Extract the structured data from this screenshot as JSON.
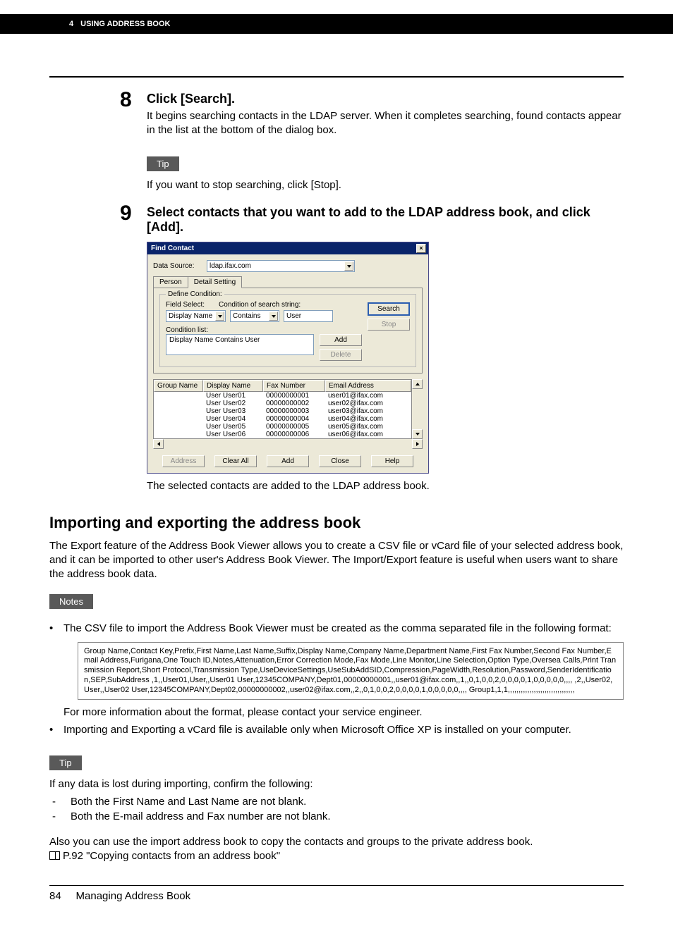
{
  "header": {
    "chapter_num": "4",
    "chapter_title": "USING ADDRESS BOOK"
  },
  "step8": {
    "num": "8",
    "title": "Click [Search].",
    "text": "It begins searching contacts in the LDAP server. When it completes searching, found contacts appear in the list at the bottom of the dialog box."
  },
  "tip1": {
    "label": "Tip",
    "text": "If you want to stop searching, click [Stop]."
  },
  "step9": {
    "num": "9",
    "title": "Select contacts that you want to add to the LDAP address book, and click [Add].",
    "after_img": "The selected contacts are added to the LDAP address book."
  },
  "dialog": {
    "title": "Find Contact",
    "data_source_label": "Data Source:",
    "data_source_value": "ldap.ifax.com",
    "tab_person": "Person",
    "tab_detail": "Detail Setting",
    "define_condition": "Define Condition:",
    "field_select_label": "Field Select:",
    "field_select_value": "Display Name",
    "condition_label": "Condition of search string:",
    "condition_value": "Contains",
    "search_string_value": "User",
    "condition_list_label": "Condition list:",
    "condition_list_value": "Display Name Contains User",
    "btn_add": "Add",
    "btn_delete": "Delete",
    "btn_search": "Search",
    "btn_stop": "Stop",
    "col_group": "Group Name",
    "col_display": "Display Name",
    "col_fax": "Fax Number",
    "col_email": "Email Address",
    "rows": [
      {
        "group": "",
        "display": "User User01",
        "fax": "00000000001",
        "email": "user01@ifax.com"
      },
      {
        "group": "",
        "display": "User User02",
        "fax": "00000000002",
        "email": "user02@ifax.com"
      },
      {
        "group": "",
        "display": "User User03",
        "fax": "00000000003",
        "email": "user03@ifax.com"
      },
      {
        "group": "",
        "display": "User User04",
        "fax": "00000000004",
        "email": "user04@ifax.com"
      },
      {
        "group": "",
        "display": "User User05",
        "fax": "00000000005",
        "email": "user05@ifax.com"
      },
      {
        "group": "",
        "display": "User User06",
        "fax": "00000000006",
        "email": "user06@ifax.com"
      }
    ],
    "btn_address": "Address",
    "btn_clear_all": "Clear All",
    "btn_add2": "Add",
    "btn_close": "Close",
    "btn_help": "Help"
  },
  "section2": {
    "title": "Importing and exporting the address book",
    "intro": "The Export feature of the Address Book Viewer allows you to create a CSV file or vCard file of your selected address book, and it can be imported to other user's Address Book Viewer. The Import/Export feature is useful when users want to share the address book data."
  },
  "notes": {
    "label": "Notes",
    "bullet1": "The CSV file to import the Address Book Viewer must be created as the comma separated file in the following format:",
    "csv": "Group Name,Contact Key,Prefix,First Name,Last Name,Suffix,Display Name,Company Name,Department Name,First Fax Number,Second Fax Number,Email Address,Furigana,One Touch ID,Notes,Attenuation,Error Correction Mode,Fax Mode,Line Monitor,Line Selection,Option Type,Oversea Calls,Print Transmission Report,Short Protocol,Transmission Type,UseDeviceSettings,UseSubAddSID,Compression,PageWidth,Resolution,Password,SenderIdentification,SEP,SubAddress ,1,,User01,User,,User01 User,12345COMPANY,Dept01,00000000001,,user01@ifax.com,,1,,0,1,0,0,2,0,0,0,0,1,0,0,0,0,0,,,, ,2,,User02,User,,User02 User,12345COMPANY,Dept02,00000000002,,user02@ifax.com,,2,,0,1,0,0,2,0,0,0,0,1,0,0,0,0,0,,,, Group1,1,1,,,,,,,,,,,,,,,,,,,,,,,,,,,,,,,",
    "after_csv": "For more information about the format, please contact your service engineer.",
    "bullet2": "Importing and Exporting a vCard file is available only when Microsoft Office XP is installed on your computer."
  },
  "tip2": {
    "label": "Tip",
    "line1": "If any data is lost during importing, confirm the following:",
    "dash1": "Both the First Name and Last Name are not blank.",
    "dash2": "Both the E-mail address and Fax number are not blank.",
    "para2": "Also you can use the import address book to copy the contacts and groups to the private address book.",
    "ref": "P.92 \"Copying contacts from an address book\""
  },
  "footer": {
    "page": "84",
    "title": "Managing Address Book"
  }
}
